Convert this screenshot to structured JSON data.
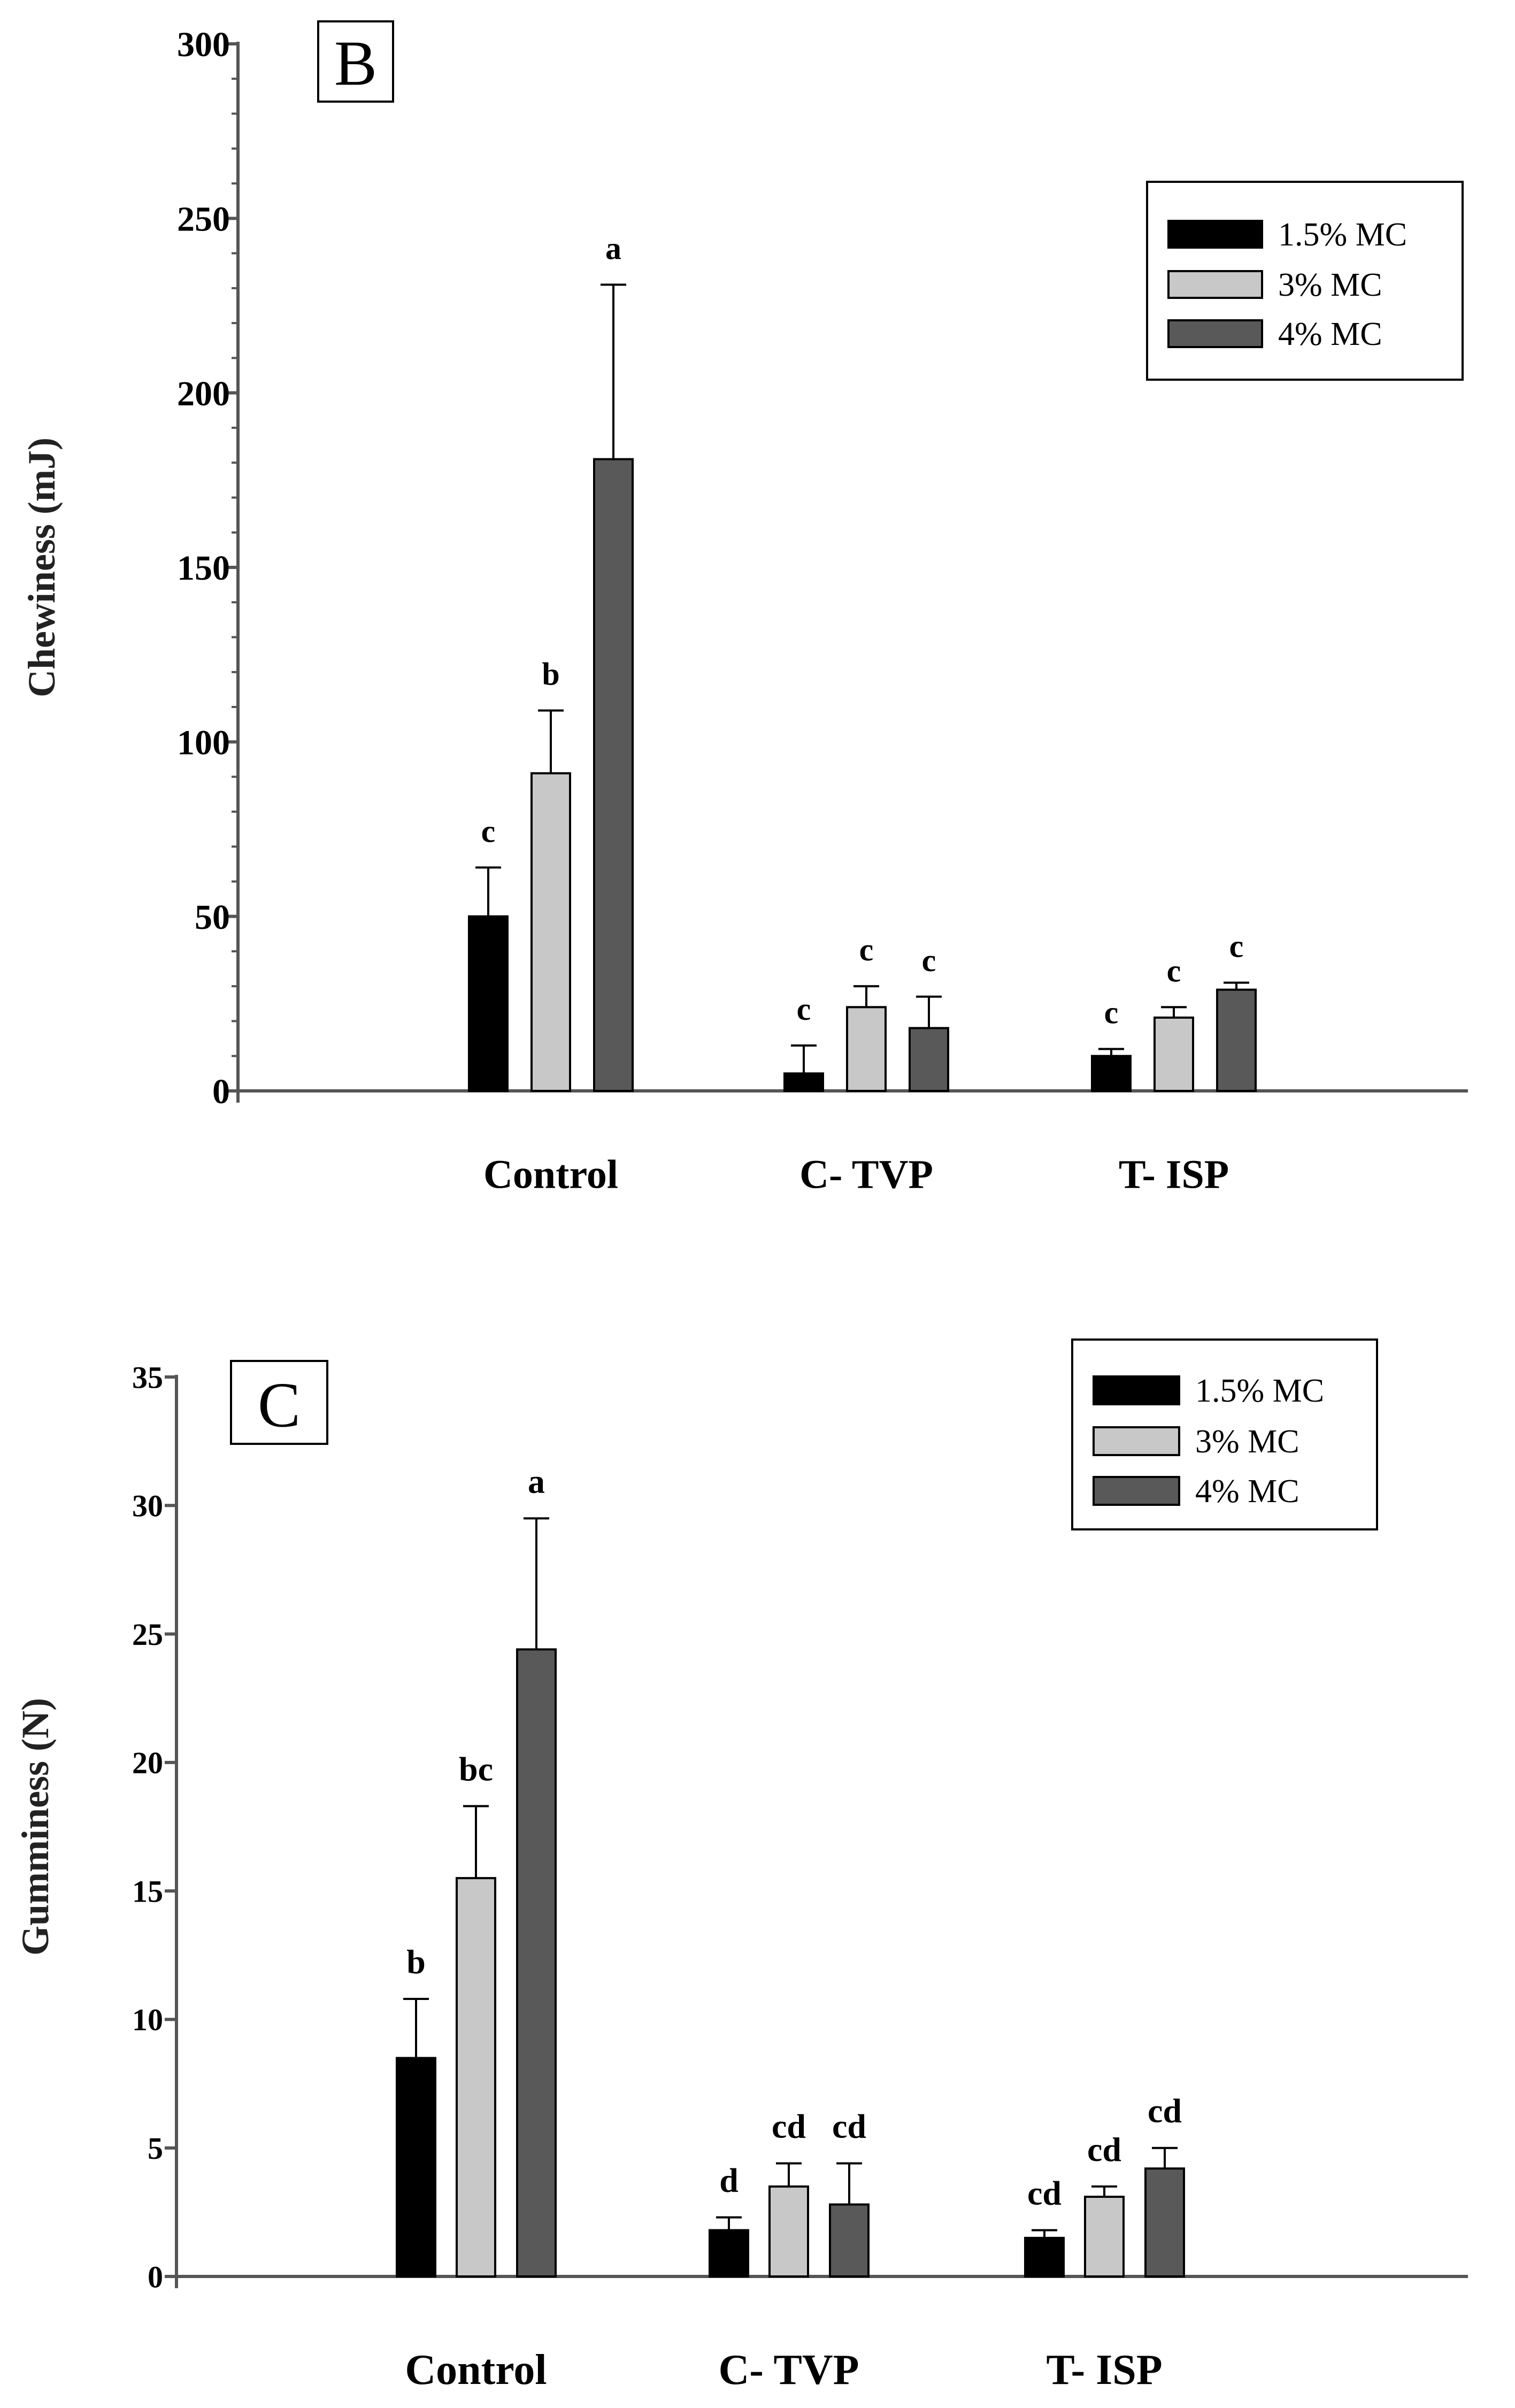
{
  "colors": {
    "series_1": "#000000",
    "series_2": "#c8c8c8",
    "series_3": "#595959",
    "axis": "#555555",
    "text": "#000000"
  },
  "chart_data": [
    {
      "type": "bar",
      "panel_label": "B",
      "ylabel": "Chewiness (mJ)",
      "xlabel": "",
      "ylim": [
        0,
        300
      ],
      "yticks": [
        0,
        50,
        100,
        150,
        200,
        250,
        300
      ],
      "ytick_labels": [
        "0",
        "50",
        "100",
        "150",
        "200",
        "250",
        "300"
      ],
      "categories": [
        "Control",
        "C- TVP",
        "T- ISP"
      ],
      "legend_position": "top-right",
      "series": [
        {
          "name": "1.5% MC",
          "values": [
            50,
            5,
            10
          ],
          "errors": [
            14,
            8,
            2
          ],
          "letters": [
            "c",
            "c",
            "c"
          ]
        },
        {
          "name": "3% MC",
          "values": [
            91,
            24,
            21
          ],
          "errors": [
            18,
            6,
            3
          ],
          "letters": [
            "b",
            "c",
            "c"
          ]
        },
        {
          "name": "4% MC",
          "values": [
            181,
            18,
            29
          ],
          "errors": [
            50,
            9,
            2
          ],
          "letters": [
            "a",
            "c",
            "c"
          ]
        }
      ]
    },
    {
      "type": "bar",
      "panel_label": "C",
      "ylabel": "Gumminess (N)",
      "xlabel": "",
      "ylim": [
        0,
        35
      ],
      "yticks": [
        0,
        5,
        10,
        15,
        20,
        25,
        30,
        35
      ],
      "ytick_labels": [
        "0",
        "5",
        "10",
        "15",
        "20",
        "25",
        "30",
        "35"
      ],
      "categories": [
        "Control",
        "C- TVP",
        "T- ISP"
      ],
      "legend_position": "top-right",
      "series": [
        {
          "name": "1.5% MC",
          "values": [
            8.5,
            1.8,
            1.5
          ],
          "errors": [
            2.3,
            0.5,
            0.3
          ],
          "letters": [
            "b",
            "d",
            "cd"
          ]
        },
        {
          "name": "3% MC",
          "values": [
            15.5,
            3.5,
            3.1
          ],
          "errors": [
            2.8,
            0.9,
            0.4
          ],
          "letters": [
            "bc",
            "cd",
            "cd"
          ]
        },
        {
          "name": "4% MC",
          "values": [
            24.4,
            2.8,
            4.2
          ],
          "errors": [
            5.1,
            1.6,
            0.8
          ],
          "letters": [
            "a",
            "cd",
            "cd"
          ]
        }
      ]
    }
  ]
}
